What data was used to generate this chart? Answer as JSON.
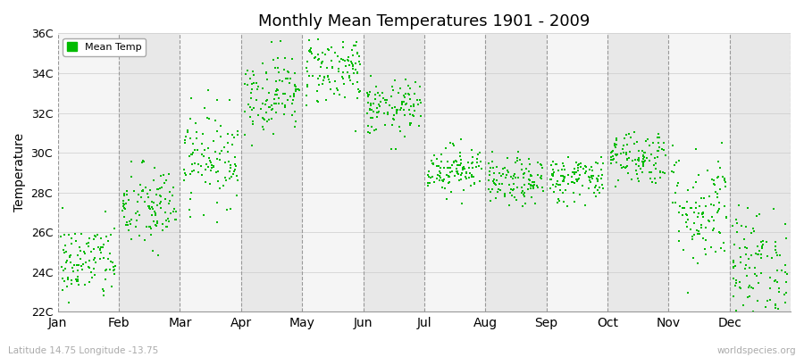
{
  "title": "Monthly Mean Temperatures 1901 - 2009",
  "ylabel": "Temperature",
  "xlabel_labels": [
    "Jan",
    "Feb",
    "Mar",
    "Apr",
    "May",
    "Jun",
    "Jul",
    "Aug",
    "Sep",
    "Oct",
    "Nov",
    "Dec"
  ],
  "ylim": [
    22,
    36
  ],
  "ytick_labels": [
    "22C",
    "24C",
    "26C",
    "28C",
    "30C",
    "32C",
    "34C",
    "36C"
  ],
  "ytick_values": [
    22,
    24,
    26,
    28,
    30,
    32,
    34,
    36
  ],
  "marker_color": "#00bb00",
  "legend_label": "Mean Temp",
  "bg_color": "#ffffff",
  "band_color_light": "#f5f5f5",
  "band_color_dark": "#e8e8e8",
  "footer_left": "Latitude 14.75 Longitude -13.75",
  "footer_right": "worldspecies.org",
  "n_years": 109,
  "monthly_means": [
    24.5,
    27.2,
    29.8,
    33.0,
    34.2,
    32.2,
    29.2,
    28.5,
    28.7,
    29.8,
    27.2,
    24.2
  ],
  "monthly_stds": [
    1.0,
    1.1,
    1.2,
    1.0,
    0.9,
    0.7,
    0.6,
    0.6,
    0.6,
    0.7,
    1.5,
    1.5
  ],
  "seed": 42
}
